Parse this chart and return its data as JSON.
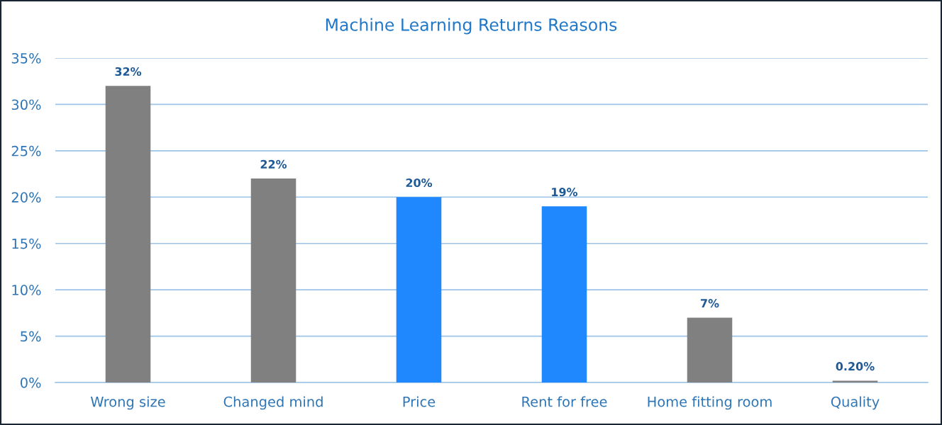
{
  "chart_data": {
    "type": "bar",
    "title": "Machine Learning Returns Reasons",
    "categories": [
      "Wrong size",
      "Changed mind",
      "Price",
      "Rent for free",
      "Home fitting room",
      "Quality"
    ],
    "values": [
      32,
      22,
      20,
      19,
      7,
      0.2
    ],
    "colors": [
      "#808080",
      "#808080",
      "#2088ff",
      "#2088ff",
      "#808080",
      "#808080"
    ],
    "value_labels": [
      "32%",
      "22%",
      "20%",
      "19%",
      "7%",
      "0.20%"
    ],
    "ylim": [
      0,
      35
    ],
    "yticks": [
      {
        "value": 0,
        "label": "0%"
      },
      {
        "value": 5,
        "label": "5%"
      },
      {
        "value": 10,
        "label": "10%"
      },
      {
        "value": 15,
        "label": "15%"
      },
      {
        "value": 20,
        "label": "20%"
      },
      {
        "value": 25,
        "label": "25%"
      },
      {
        "value": 30,
        "label": "30%"
      },
      {
        "value": 35,
        "label": "35%"
      }
    ],
    "grid": "y",
    "legend": false
  }
}
